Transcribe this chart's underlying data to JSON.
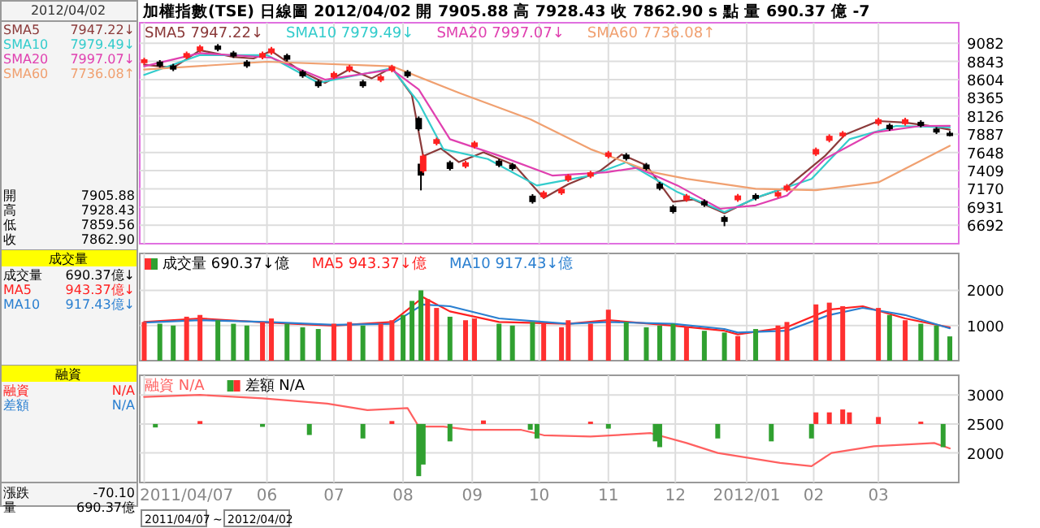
{
  "chart_data": [
    {
      "type": "other",
      "annotations": [
        "2012/04/02",
        "SMA5",
        "7947.22↓",
        "SMA10",
        "7979.49↓",
        "SMA20",
        "7997.07↓",
        "SMA60",
        "7736.08↑",
        "開",
        "7905.88",
        "高",
        "7928.43",
        "低",
        "7859.56",
        "收",
        "7862.90",
        "成交量",
        "成交量",
        "690.37億↓",
        "MA5",
        "943.37億↓",
        "MA10",
        "917.43億↓",
        "融資",
        "融資",
        "N/A",
        "差額",
        "N/A",
        "漲跌",
        "-70.10",
        "量",
        "690.37億",
        "2011/04/07",
        "~",
        "2012/04/02"
      ]
    },
    {
      "type": "candlestick",
      "title": "加權指數(TSE)  日線圖  2012/04/02  開 7905.88  高 7928.43  收 7862.90 s 點  量 690.37 億  -7",
      "legend": "top left",
      "grid": true,
      "tick_labels": "y",
      "xlim": [
        "2011-04-05",
        "2012-04-06"
      ],
      "ylim": [
        6450,
        9350
      ],
      "yticks": [
        9082,
        8843,
        8604,
        8365,
        8126,
        7887,
        7648,
        7409,
        7170,
        6931,
        6692
      ],
      "xticks": [
        {
          "value": "2011-04-07",
          "label": null
        },
        {
          "value": "2011-06-01",
          "label": null
        },
        {
          "value": "2011-07-01",
          "label": null
        },
        {
          "value": "2011-08-01",
          "label": null
        },
        {
          "value": "2011-09-01",
          "label": null
        },
        {
          "value": "2011-10-01",
          "label": null
        },
        {
          "value": "2011-11-01",
          "label": null
        },
        {
          "value": "2011-12-01",
          "label": null
        },
        {
          "value": "2012-01-02",
          "label": null
        },
        {
          "value": "2012-02-01",
          "label": null
        },
        {
          "value": "2012-03-01",
          "label": null
        }
      ],
      "x": [
        "2011-04-07",
        "2011-04-14",
        "2011-04-20",
        "2011-04-26",
        "2011-05-02",
        "2011-05-10",
        "2011-05-17",
        "2011-05-23",
        "2011-05-30",
        "2011-06-03",
        "2011-06-10",
        "2011-06-17",
        "2011-06-24",
        "2011-07-01",
        "2011-07-08",
        "2011-07-14",
        "2011-07-22",
        "2011-07-27",
        "2011-08-03",
        "2011-08-08",
        "2011-08-09",
        "2011-08-10",
        "2011-08-16",
        "2011-08-22",
        "2011-08-29",
        "2011-09-02",
        "2011-09-13",
        "2011-09-19",
        "2011-09-28",
        "2011-10-03",
        "2011-10-11",
        "2011-10-14",
        "2011-10-24",
        "2011-11-01",
        "2011-11-09",
        "2011-11-18",
        "2011-11-24",
        "2011-11-30",
        "2011-12-06",
        "2011-12-14",
        "2011-12-23",
        "2011-12-29",
        "2012-01-06",
        "2012-01-16",
        "2012-01-20",
        "2012-02-02",
        "2012-02-08",
        "2012-02-14",
        "2012-03-01",
        "2012-03-06",
        "2012-03-13",
        "2012-03-20",
        "2012-03-27",
        "2012-04-02"
      ],
      "ohlc": [
        [
          8820,
          8890,
          8800,
          8870
        ],
        [
          8840,
          8860,
          8760,
          8780
        ],
        [
          8790,
          8810,
          8715,
          8735
        ],
        [
          8890,
          8972,
          8870,
          8952
        ],
        [
          8980,
          9059,
          8960,
          9039
        ],
        [
          9050,
          9070,
          8975,
          8995
        ],
        [
          8960,
          8980,
          8888,
          8908
        ],
        [
          8840,
          8860,
          8758,
          8778
        ],
        [
          8890,
          8972,
          8870,
          8952
        ],
        [
          8950,
          9033,
          8930,
          9013
        ],
        [
          8925,
          8945,
          8845,
          8865
        ],
        [
          8710,
          8730,
          8627,
          8647
        ],
        [
          8580,
          8600,
          8497,
          8517
        ],
        [
          8630,
          8711,
          8610,
          8691
        ],
        [
          8720,
          8798,
          8700,
          8778
        ],
        [
          8580,
          8600,
          8497,
          8517
        ],
        [
          8590,
          8667,
          8570,
          8647
        ],
        [
          8720,
          8798,
          8700,
          8778
        ],
        [
          8710,
          8730,
          8627,
          8647
        ],
        [
          8100,
          8120,
          7932,
          7952
        ],
        [
          7500,
          7520,
          7150,
          7344
        ],
        [
          7400,
          7625,
          7380,
          7605
        ],
        [
          7760,
          7842,
          7740,
          7822
        ],
        [
          7520,
          7540,
          7411,
          7431
        ],
        [
          7460,
          7538,
          7440,
          7518
        ],
        [
          7720,
          7799,
          7700,
          7779
        ],
        [
          7540,
          7560,
          7454,
          7474
        ],
        [
          7490,
          7510,
          7411,
          7431
        ],
        [
          7080,
          7100,
          6976,
          6996
        ],
        [
          7060,
          7146,
          7040,
          7126
        ],
        [
          7110,
          7190,
          7090,
          7170
        ],
        [
          7280,
          7364,
          7260,
          7344
        ],
        [
          7330,
          7407,
          7310,
          7387
        ],
        [
          7590,
          7668,
          7570,
          7648
        ],
        [
          7620,
          7640,
          7541,
          7561
        ],
        [
          7490,
          7510,
          7411,
          7431
        ],
        [
          7240,
          7260,
          7150,
          7170
        ],
        [
          6940,
          6960,
          6846,
          6866
        ],
        [
          7020,
          7103,
          7000,
          7083
        ],
        [
          7010,
          7030,
          6933,
          6953
        ],
        [
          6800,
          6820,
          6680,
          6736
        ],
        [
          7020,
          7103,
          7000,
          7083
        ],
        [
          7090,
          7110,
          7019,
          7039
        ],
        [
          7070,
          7146,
          7050,
          7126
        ],
        [
          7150,
          7233,
          7130,
          7213
        ],
        [
          7620,
          7712,
          7600,
          7692
        ],
        [
          7800,
          7886,
          7780,
          7866
        ],
        [
          7860,
          7929,
          7840,
          7909
        ],
        [
          8020,
          8103,
          8000,
          8083
        ],
        [
          8010,
          8030,
          7932,
          7952
        ],
        [
          8020,
          8103,
          8000,
          8083
        ],
        [
          8050,
          8070,
          7976,
          7996
        ],
        [
          7960,
          7980,
          7889,
          7909
        ],
        [
          7905.88,
          7928.43,
          7859.56,
          7862.9
        ]
      ],
      "series": [
        {
          "name": "SMA5 7947.22↓",
          "type": "line",
          "color": "#8b3a3a",
          "x": [
            "2011-04-07",
            "2011-04-20",
            "2011-05-02",
            "2011-05-17",
            "2011-05-26",
            "2011-06-03",
            "2011-06-17",
            "2011-06-27",
            "2011-07-08",
            "2011-07-18",
            "2011-07-27",
            "2011-08-05",
            "2011-08-10",
            "2011-08-18",
            "2011-08-26",
            "2011-09-06",
            "2011-09-20",
            "2011-10-03",
            "2011-10-14",
            "2011-10-28",
            "2011-11-07",
            "2011-11-18",
            "2011-11-30",
            "2011-12-09",
            "2011-12-23",
            "2012-01-06",
            "2012-01-20",
            "2012-02-06",
            "2012-02-15",
            "2012-03-01",
            "2012-03-13",
            "2012-03-23",
            "2012-04-02"
          ],
          "values": [
            8800,
            8760,
            8990,
            8900,
            8880,
            8980,
            8700,
            8560,
            8740,
            8620,
            8760,
            8400,
            7600,
            7700,
            7520,
            7650,
            7480,
            7050,
            7230,
            7400,
            7620,
            7480,
            7000,
            7030,
            6850,
            7050,
            7190,
            7600,
            7880,
            8060,
            8040,
            8000,
            7947.22
          ]
        },
        {
          "name": "SMA10 7979.49↓",
          "type": "line",
          "color": "#33cccc",
          "x": [
            "2011-04-07",
            "2011-05-02",
            "2011-06-01",
            "2011-06-24",
            "2011-07-27",
            "2011-08-08",
            "2011-08-19",
            "2011-09-08",
            "2011-09-30",
            "2011-10-24",
            "2011-11-09",
            "2011-12-02",
            "2011-12-23",
            "2012-01-09",
            "2012-01-31",
            "2012-02-17",
            "2012-03-09",
            "2012-04-02"
          ],
          "values": [
            8665,
            8926,
            8926,
            8560,
            8752,
            8300,
            7692,
            7561,
            7213,
            7344,
            7518,
            7126,
            6866,
            7083,
            7300,
            7822,
            7996,
            7979.49
          ]
        },
        {
          "name": "SMA20 7997.07↓",
          "type": "line",
          "color": "#e040b0",
          "x": [
            "2011-04-07",
            "2011-05-02",
            "2011-06-03",
            "2011-06-27",
            "2011-07-27",
            "2011-08-08",
            "2011-08-22",
            "2011-09-13",
            "2011-10-07",
            "2011-10-31",
            "2011-11-14",
            "2011-12-02",
            "2011-12-21",
            "2012-01-06",
            "2012-01-20",
            "2012-02-06",
            "2012-02-28",
            "2012-03-20",
            "2012-04-02"
          ],
          "values": [
            8778,
            8952,
            8891,
            8604,
            8735,
            8474,
            7822,
            7605,
            7344,
            7387,
            7448,
            7213,
            6909,
            6953,
            7083,
            7561,
            7909,
            7996,
            7997.07
          ]
        },
        {
          "name": "SMA60 7736.08↑",
          "type": "line",
          "color": "#f0a070",
          "x": [
            "2011-04-07",
            "2011-06-01",
            "2011-07-27",
            "2011-08-26",
            "2011-09-27",
            "2011-10-24",
            "2011-11-21",
            "2011-12-06",
            "2012-01-06",
            "2012-02-02",
            "2012-03-01",
            "2012-04-02"
          ],
          "values": [
            8735,
            8839,
            8778,
            8430,
            8083,
            7692,
            7387,
            7300,
            7170,
            7152,
            7257,
            7736.08
          ]
        }
      ]
    },
    {
      "type": "bar",
      "legend": "top left",
      "grid": true,
      "tick_labels": "y",
      "xlim": [
        "2011-04-05",
        "2012-04-06"
      ],
      "ylim": [
        0,
        3050
      ],
      "yticks": [
        1000,
        2000
      ],
      "xticks": [
        {
          "value": "2011-04-07",
          "label": null
        },
        {
          "value": "2011-06-01",
          "label": null
        },
        {
          "value": "2011-07-01",
          "label": null
        },
        {
          "value": "2011-08-01",
          "label": null
        },
        {
          "value": "2011-09-01",
          "label": null
        },
        {
          "value": "2011-10-01",
          "label": null
        },
        {
          "value": "2011-11-01",
          "label": null
        },
        {
          "value": "2011-12-01",
          "label": null
        },
        {
          "value": "2012-01-02",
          "label": null
        },
        {
          "value": "2012-02-01",
          "label": null
        },
        {
          "value": "2012-03-01",
          "label": null
        }
      ],
      "series": [
        {
          "name": "成交量 690.37↓億",
          "type": "bar",
          "x": [
            "2011-04-07",
            "2011-04-14",
            "2011-04-20",
            "2011-04-26",
            "2011-05-02",
            "2011-05-10",
            "2011-05-17",
            "2011-05-23",
            "2011-05-30",
            "2011-06-03",
            "2011-06-10",
            "2011-06-17",
            "2011-06-24",
            "2011-07-01",
            "2011-07-08",
            "2011-07-14",
            "2011-07-22",
            "2011-07-27",
            "2011-08-01",
            "2011-08-05",
            "2011-08-09",
            "2011-08-12",
            "2011-08-16",
            "2011-08-22",
            "2011-08-29",
            "2011-09-02",
            "2011-09-13",
            "2011-09-19",
            "2011-09-28",
            "2011-10-03",
            "2011-10-11",
            "2011-10-14",
            "2011-10-24",
            "2011-11-01",
            "2011-11-09",
            "2011-11-18",
            "2011-11-24",
            "2011-11-30",
            "2011-12-06",
            "2011-12-14",
            "2011-12-23",
            "2011-12-29",
            "2012-01-06",
            "2012-01-16",
            "2012-01-20",
            "2012-02-02",
            "2012-02-08",
            "2012-02-14",
            "2012-03-01",
            "2012-03-06",
            "2012-03-13",
            "2012-03-20",
            "2012-03-27",
            "2012-04-02"
          ],
          "values": [
            1100,
            1050,
            1000,
            1250,
            1300,
            1150,
            1050,
            1000,
            1100,
            1200,
            1050,
            950,
            900,
            1050,
            1100,
            1000,
            1050,
            1150,
            1300,
            1700,
            2000,
            1750,
            1500,
            1250,
            1150,
            1200,
            1050,
            1000,
            1100,
            1050,
            950,
            1150,
            1050,
            1450,
            1100,
            950,
            1000,
            1050,
            950,
            850,
            800,
            700,
            900,
            1000,
            1100,
            1600,
            1650,
            1550,
            1500,
            1300,
            1150,
            1050,
            1000,
            690.37
          ],
          "colors": [
            "#ff3030",
            "#30a030",
            "#30a030",
            "#ff3030",
            "#ff3030",
            "#30a030",
            "#30a030",
            "#30a030",
            "#ff3030",
            "#ff3030",
            "#30a030",
            "#30a030",
            "#30a030",
            "#ff3030",
            "#ff3030",
            "#30a030",
            "#ff3030",
            "#ff3030",
            "#30a030",
            "#30a030",
            "#30a030",
            "#ff3030",
            "#ff3030",
            "#30a030",
            "#ff3030",
            "#ff3030",
            "#30a030",
            "#30a030",
            "#30a030",
            "#ff3030",
            "#ff3030",
            "#ff3030",
            "#ff3030",
            "#ff3030",
            "#30a030",
            "#30a030",
            "#30a030",
            "#30a030",
            "#ff3030",
            "#30a030",
            "#30a030",
            "#ff3030",
            "#30a030",
            "#ff3030",
            "#ff3030",
            "#ff3030",
            "#ff3030",
            "#ff3030",
            "#ff3030",
            "#30a030",
            "#ff3030",
            "#30a030",
            "#30a030",
            "#30a030"
          ]
        },
        {
          "name": "MA5 943.37↓億",
          "type": "line",
          "color": "#ff2020",
          "x": [
            "2011-04-07",
            "2011-05-02",
            "2011-06-01",
            "2011-07-01",
            "2011-07-27",
            "2011-08-10",
            "2011-08-22",
            "2011-09-13",
            "2011-10-14",
            "2011-11-01",
            "2011-11-30",
            "2011-12-23",
            "2011-12-29",
            "2012-01-20",
            "2012-02-08",
            "2012-02-23",
            "2012-03-13",
            "2012-04-02"
          ],
          "values": [
            1100,
            1200,
            1080,
            1000,
            1100,
            1800,
            1400,
            1100,
            1050,
            1150,
            1000,
            850,
            750,
            950,
            1450,
            1550,
            1200,
            943.37
          ]
        },
        {
          "name": "MA10 917.43↓億",
          "type": "line",
          "color": "#2a7fd0",
          "x": [
            "2011-04-07",
            "2011-05-02",
            "2011-06-01",
            "2011-07-01",
            "2011-07-27",
            "2011-08-10",
            "2011-08-22",
            "2011-09-13",
            "2011-10-14",
            "2011-11-01",
            "2011-11-30",
            "2011-12-23",
            "2011-12-29",
            "2012-01-20",
            "2012-02-08",
            "2012-02-23",
            "2012-03-13",
            "2012-04-02"
          ],
          "values": [
            1080,
            1150,
            1100,
            1020,
            1050,
            1600,
            1550,
            1200,
            1050,
            1100,
            1050,
            900,
            800,
            850,
            1300,
            1500,
            1300,
            917.43
          ]
        }
      ]
    },
    {
      "type": "line",
      "legend": "top left",
      "grid": true,
      "xlim": [
        "2011-04-05",
        "2012-04-06"
      ],
      "ylim": [
        1490,
        3340
      ],
      "yticks": [
        2000,
        2500,
        3000
      ],
      "xticks": [
        {
          "value": "2011-04-07",
          "label": "2011/04/07"
        },
        {
          "value": "2011-06-01",
          "label": "06"
        },
        {
          "value": "2011-07-01",
          "label": "07"
        },
        {
          "value": "2011-08-01",
          "label": "08"
        },
        {
          "value": "2011-09-01",
          "label": "09"
        },
        {
          "value": "2011-10-01",
          "label": "10"
        },
        {
          "value": "2011-11-01",
          "label": "11"
        },
        {
          "value": "2011-12-01",
          "label": "12"
        },
        {
          "value": "2012-01-02",
          "label": "2012/01"
        },
        {
          "value": "2012-02-01",
          "label": "02"
        },
        {
          "value": "2012-03-01",
          "label": "03"
        }
      ],
      "series": [
        {
          "name": "融資 N/A",
          "type": "line",
          "color": "#ff6060",
          "x": [
            "2011-04-07",
            "2011-05-02",
            "2011-05-30",
            "2011-06-28",
            "2011-07-16",
            "2011-08-03",
            "2011-08-08",
            "2011-08-19",
            "2011-08-31",
            "2011-09-23",
            "2011-10-03",
            "2011-10-24",
            "2011-11-20",
            "2011-12-06",
            "2011-12-20",
            "2012-01-17",
            "2012-01-31",
            "2012-02-09",
            "2012-02-28",
            "2012-03-26",
            "2012-04-02"
          ],
          "values": [
            2966,
            3000,
            2943,
            2852,
            2739,
            2773,
            2455,
            2455,
            2398,
            2398,
            2307,
            2284,
            2341,
            2170,
            2000,
            1830,
            1773,
            2000,
            2114,
            2170,
            2080
          ]
        },
        {
          "name": "差額 N/A",
          "type": "bar",
          "x": [
            "2011-04-12",
            "2011-05-02",
            "2011-05-30",
            "2011-06-20",
            "2011-07-14",
            "2011-07-27",
            "2011-08-08",
            "2011-08-10",
            "2011-08-22",
            "2011-09-06",
            "2011-09-27",
            "2011-09-30",
            "2011-10-24",
            "2011-11-01",
            "2011-11-22",
            "2011-11-24",
            "2011-12-20",
            "2012-01-13",
            "2012-01-31",
            "2012-02-02",
            "2012-02-08",
            "2012-02-14",
            "2012-02-17",
            "2012-03-01",
            "2012-03-20",
            "2012-03-30"
          ],
          "base": [
            2500,
            2500,
            2500,
            2500,
            2500,
            2500,
            2500,
            2500,
            2500,
            2500,
            2500,
            2500,
            2500,
            2500,
            2500,
            2500,
            2500,
            2500,
            2500,
            2500,
            2500,
            2500,
            2500,
            2500,
            2500,
            2500
          ],
          "values": [
            -60,
            50,
            -50,
            -190,
            -250,
            50,
            -900,
            -700,
            -300,
            60,
            -100,
            -250,
            40,
            -80,
            -300,
            -400,
            -250,
            -300,
            -250,
            200,
            200,
            250,
            200,
            120,
            40,
            -400
          ],
          "colors": [
            "#30a030",
            "#ff3030",
            "#30a030",
            "#30a030",
            "#30a030",
            "#ff3030",
            "#30a030",
            "#30a030",
            "#30a030",
            "#ff3030",
            "#30a030",
            "#30a030",
            "#ff3030",
            "#30a030",
            "#30a030",
            "#30a030",
            "#30a030",
            "#30a030",
            "#30a030",
            "#ff3030",
            "#ff3030",
            "#ff3030",
            "#ff3030",
            "#ff3030",
            "#ff3030",
            "#30a030"
          ]
        }
      ]
    }
  ]
}
